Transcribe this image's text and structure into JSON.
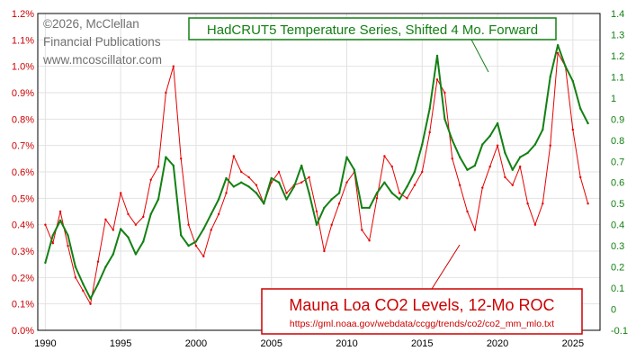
{
  "chart_data": {
    "type": "line",
    "copyright": [
      "©2026, McClellan",
      "Financial Publications",
      "www.mcoscillator.com"
    ],
    "x_ticks": [
      "1990",
      "1995",
      "2000",
      "2005",
      "2010",
      "2015",
      "2020",
      "2025"
    ],
    "xlim": [
      1989.5,
      2026.8
    ],
    "left_axis": {
      "range": [
        0.0,
        1.2
      ],
      "ticks": [
        "0.0%",
        "0.1%",
        "0.2%",
        "0.3%",
        "0.4%",
        "0.5%",
        "0.6%",
        "0.7%",
        "0.8%",
        "0.9%",
        "1.0%",
        "1.1%",
        "1.2%"
      ]
    },
    "right_axis": {
      "range": [
        -0.1,
        1.4
      ],
      "ticks": [
        "-0.1",
        "0",
        "0.1",
        "0.2",
        "0.3",
        "0.4",
        "0.5",
        "0.6",
        "0.7",
        "0.8",
        "0.9",
        "1",
        "1.1",
        "1.2",
        "1.3",
        "1.4"
      ]
    },
    "series": [
      {
        "name": "Mauna Loa CO2 Levels, 12-Mo ROC",
        "source": "https://gml.noaa.gov/webdata/ccgg/trends/co2/co2_mm_mlo.txt",
        "axis": "left",
        "color": "#e60000",
        "x": [
          1990.0,
          1990.5,
          1991.0,
          1991.5,
          1992.0,
          1992.5,
          1993.0,
          1993.5,
          1994.0,
          1994.5,
          1995.0,
          1995.5,
          1996.0,
          1996.5,
          1997.0,
          1997.5,
          1998.0,
          1998.5,
          1999.0,
          1999.5,
          2000.0,
          2000.5,
          2001.0,
          2001.5,
          2002.0,
          2002.5,
          2003.0,
          2003.5,
          2004.0,
          2004.5,
          2005.0,
          2005.5,
          2006.0,
          2006.5,
          2007.0,
          2007.5,
          2008.0,
          2008.5,
          2009.0,
          2009.5,
          2010.0,
          2010.5,
          2011.0,
          2011.5,
          2012.0,
          2012.5,
          2013.0,
          2013.5,
          2014.0,
          2014.5,
          2015.0,
          2015.5,
          2016.0,
          2016.5,
          2017.0,
          2017.5,
          2018.0,
          2018.5,
          2019.0,
          2019.5,
          2020.0,
          2020.5,
          2021.0,
          2021.5,
          2022.0,
          2022.5,
          2023.0,
          2023.5,
          2024.0,
          2024.5,
          2025.0,
          2025.5,
          2026.0
        ],
        "values": [
          0.4,
          0.33,
          0.45,
          0.32,
          0.2,
          0.15,
          0.1,
          0.26,
          0.42,
          0.38,
          0.52,
          0.44,
          0.4,
          0.43,
          0.57,
          0.62,
          0.9,
          1.0,
          0.65,
          0.4,
          0.32,
          0.28,
          0.38,
          0.44,
          0.52,
          0.66,
          0.6,
          0.58,
          0.55,
          0.48,
          0.56,
          0.6,
          0.52,
          0.55,
          0.56,
          0.58,
          0.45,
          0.3,
          0.4,
          0.48,
          0.56,
          0.6,
          0.38,
          0.34,
          0.5,
          0.66,
          0.62,
          0.52,
          0.5,
          0.55,
          0.6,
          0.75,
          0.95,
          0.9,
          0.65,
          0.55,
          0.45,
          0.38,
          0.54,
          0.62,
          0.7,
          0.58,
          0.55,
          0.62,
          0.48,
          0.4,
          0.48,
          0.7,
          1.05,
          1.0,
          0.76,
          0.58,
          0.48
        ]
      },
      {
        "name": "HadCRUT5 Temperature Series, Shifted 4 Mo. Forward",
        "axis": "right",
        "color": "#138013",
        "x": [
          1990.0,
          1990.5,
          1991.0,
          1991.5,
          1992.0,
          1992.5,
          1993.0,
          1993.5,
          1994.0,
          1994.5,
          1995.0,
          1995.5,
          1996.0,
          1996.5,
          1997.0,
          1997.5,
          1998.0,
          1998.5,
          1999.0,
          1999.5,
          2000.0,
          2000.5,
          2001.0,
          2001.5,
          2002.0,
          2002.5,
          2003.0,
          2003.5,
          2004.0,
          2004.5,
          2005.0,
          2005.5,
          2006.0,
          2006.5,
          2007.0,
          2007.5,
          2008.0,
          2008.5,
          2009.0,
          2009.5,
          2010.0,
          2010.5,
          2011.0,
          2011.5,
          2012.0,
          2012.5,
          2013.0,
          2013.5,
          2014.0,
          2014.5,
          2015.0,
          2015.5,
          2016.0,
          2016.5,
          2017.0,
          2017.5,
          2018.0,
          2018.5,
          2019.0,
          2019.5,
          2020.0,
          2020.5,
          2021.0,
          2021.5,
          2022.0,
          2022.5,
          2023.0,
          2023.5,
          2024.0,
          2024.5,
          2025.0,
          2025.5,
          2026.0
        ],
        "values": [
          0.22,
          0.35,
          0.42,
          0.35,
          0.2,
          0.12,
          0.05,
          0.12,
          0.2,
          0.26,
          0.38,
          0.34,
          0.26,
          0.32,
          0.45,
          0.52,
          0.72,
          0.68,
          0.35,
          0.3,
          0.32,
          0.38,
          0.45,
          0.52,
          0.62,
          0.58,
          0.6,
          0.58,
          0.55,
          0.5,
          0.62,
          0.6,
          0.52,
          0.58,
          0.68,
          0.55,
          0.4,
          0.48,
          0.52,
          0.55,
          0.72,
          0.66,
          0.48,
          0.48,
          0.55,
          0.6,
          0.55,
          0.52,
          0.58,
          0.65,
          0.78,
          0.95,
          1.2,
          0.9,
          0.8,
          0.72,
          0.66,
          0.68,
          0.78,
          0.82,
          0.88,
          0.74,
          0.66,
          0.72,
          0.74,
          0.78,
          0.85,
          1.1,
          1.25,
          1.15,
          1.08,
          0.95,
          0.88
        ]
      }
    ]
  }
}
